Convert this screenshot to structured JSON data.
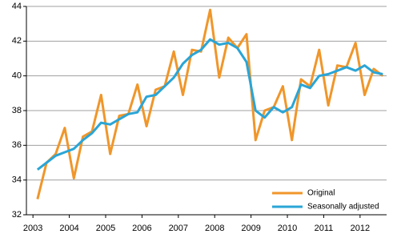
{
  "chart_data": {
    "type": "line",
    "x": [
      2003.125,
      2003.375,
      2003.625,
      2003.875,
      2004.125,
      2004.375,
      2004.625,
      2004.875,
      2005.125,
      2005.375,
      2005.625,
      2005.875,
      2006.125,
      2006.375,
      2006.625,
      2006.875,
      2007.125,
      2007.375,
      2007.625,
      2007.875,
      2008.125,
      2008.375,
      2008.625,
      2008.875,
      2009.125,
      2009.375,
      2009.625,
      2009.875,
      2010.125,
      2010.375,
      2010.625,
      2010.875,
      2011.125,
      2011.375,
      2011.625,
      2011.875,
      2012.125,
      2012.375,
      2012.625
    ],
    "series": [
      {
        "name": "Original",
        "color": "#f0962a",
        "values": [
          32.9,
          35.0,
          35.5,
          37.0,
          34.1,
          36.5,
          36.8,
          38.9,
          35.5,
          37.7,
          37.8,
          39.5,
          37.1,
          39.2,
          39.4,
          41.4,
          38.9,
          41.5,
          41.4,
          43.8,
          39.9,
          42.2,
          41.6,
          42.4,
          36.3,
          38.0,
          38.2,
          39.4,
          36.3,
          39.8,
          39.4,
          41.5,
          38.3,
          40.6,
          40.5,
          41.9,
          38.9,
          40.4,
          40.0
        ]
      },
      {
        "name": "Seasonally adjusted",
        "color": "#2aa5d6",
        "values": [
          34.6,
          35.0,
          35.4,
          35.6,
          35.8,
          36.3,
          36.7,
          37.3,
          37.2,
          37.5,
          37.8,
          37.9,
          38.8,
          38.9,
          39.4,
          39.9,
          40.7,
          41.2,
          41.5,
          42.1,
          41.8,
          41.9,
          41.6,
          40.8,
          38.0,
          37.6,
          38.2,
          37.9,
          38.2,
          39.5,
          39.3,
          40.0,
          40.1,
          40.3,
          40.5,
          40.3,
          40.6,
          40.2,
          40.1
        ]
      }
    ],
    "xlim": [
      2002.82,
      2012.73
    ],
    "xticks": [
      2003,
      2004,
      2005,
      2006,
      2007,
      2008,
      2009,
      2010,
      2011,
      2012
    ],
    "ylim": [
      32,
      44
    ],
    "yticks": [
      32,
      34,
      36,
      38,
      40,
      42,
      44
    ],
    "grid": true,
    "legend": "lower right"
  }
}
